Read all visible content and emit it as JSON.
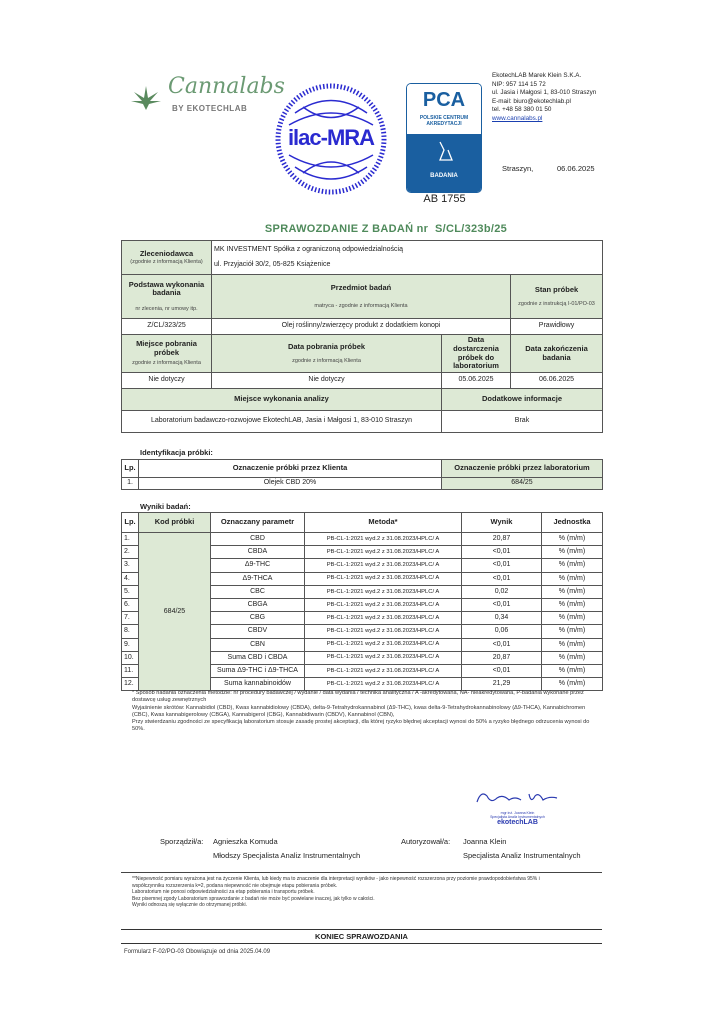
{
  "header": {
    "logo_text": "Cannalabs",
    "logo_sub": "BY EKOTECHLAB",
    "ilac_text": "ilac-MRA",
    "pca": {
      "abbr": "PCA",
      "name1": "POLSKIE CENTRUM",
      "name2": "AKREDYTACJI",
      "label": "BADANIA",
      "number": "AB 1755"
    },
    "company": [
      "EkotechLAB Marek Klein S.K.A.",
      "NIP: 957 114 15 72",
      "ul. Jasia i Małgosi 1, 83-010 Straszyn",
      "E-mail: biuro@ekotechlab.pl",
      "tel. +48 58 380 01 50"
    ],
    "website": "www.cannalabs.pl",
    "place": "Straszyn,",
    "date": "06.06.2025"
  },
  "title": {
    "text": "SPRAWOZDANIE Z BADAŃ nr",
    "number": "S/CL/323b/25"
  },
  "info": {
    "client_label": "Zleceniodawca",
    "client_note": "(zgodnie z informacją Klienta)",
    "client_name": "MK INVESTMENT Spółka z ograniczoną odpowiedzialnością",
    "client_address": "ul. Przyjaciół 30/2, 05-825 Książenice",
    "basis_label": "Podstawa wykonania badania",
    "basis_note": "nr zlecenia, nr umowy itp.",
    "subject_label": "Przedmiot badań",
    "subject_note": "matryca - zgodnie z informacją Klienta",
    "state_label": "Stan próbek",
    "state_note": "zgodnie z instrukcją I-01/PO-03",
    "basis_value": "Z/CL/323/25",
    "subject_value": "Olej roślinny/zwierzęcy produkt z dodatkiem konopi",
    "state_value": "Prawidłowy",
    "place_label": "Miejsce pobrania próbek",
    "place_note": "zgodnie z informacją Klienta",
    "sampling_date_label": "Data pobrania próbek",
    "sampling_date_note": "zgodnie z informacją Klienta",
    "delivery_label": "Data dostarczenia próbek do laboratorium",
    "end_label": "Data zakończenia badania",
    "place_value": "Nie dotyczy",
    "sampling_date_value": "Nie dotyczy",
    "delivery_value": "05.06.2025",
    "end_value": "06.06.2025",
    "analysis_place_label": "Miejsce wykonania analizy",
    "additional_label": "Dodatkowe informacje",
    "analysis_place_value": "Laboratorium badawczo-rozwojowe EkotechLAB, Jasia i Małgosi 1, 83-010 Straszyn",
    "additional_value": "Brak"
  },
  "identification": {
    "title": "Identyfikacja próbki:",
    "headers": [
      "Lp.",
      "Oznaczenie próbki przez Klienta",
      "Oznaczenie próbki przez laboratorium"
    ],
    "row": [
      "1.",
      "Olejek CBD 20%",
      "684/25"
    ]
  },
  "results": {
    "title": "Wyniki badań:",
    "headers": [
      "Lp.",
      "Kod próbki",
      "Oznaczany parametr",
      "Metoda*",
      "Wynik",
      "Jednostka"
    ],
    "sample_code": "684/25",
    "method": "PB-CL-1:2021 wyd.2 z 31.08.2023/HPLC/  A",
    "rows": [
      {
        "lp": "1.",
        "param": "CBD",
        "result": "20,87",
        "unit": "% (m/m)"
      },
      {
        "lp": "2.",
        "param": "CBDA",
        "result": "<0,01",
        "unit": "% (m/m)"
      },
      {
        "lp": "3.",
        "param": "Δ9-THC",
        "result": "<0,01",
        "unit": "% (m/m)"
      },
      {
        "lp": "4.",
        "param": "Δ9-THCA",
        "result": "<0,01",
        "unit": "% (m/m)"
      },
      {
        "lp": "5.",
        "param": "CBC",
        "result": "0,02",
        "unit": "% (m/m)"
      },
      {
        "lp": "6.",
        "param": "CBGA",
        "result": "<0,01",
        "unit": "% (m/m)"
      },
      {
        "lp": "7.",
        "param": "CBG",
        "result": "0,34",
        "unit": "% (m/m)"
      },
      {
        "lp": "8.",
        "param": "CBDV",
        "result": "0,06",
        "unit": "% (m/m)"
      },
      {
        "lp": "9.",
        "param": "CBN",
        "result": "<0,01",
        "unit": "% (m/m)"
      },
      {
        "lp": "10.",
        "param": "Suma CBD i CBDA",
        "result": "20,87",
        "unit": "% (m/m)"
      },
      {
        "lp": "11.",
        "param": "Suma Δ9-THC i Δ9-THCA",
        "result": "<0,01",
        "unit": "% (m/m)"
      },
      {
        "lp": "12.",
        "param": "Suma kannabinoidów",
        "result": "21,29",
        "unit": "% (m/m)"
      }
    ]
  },
  "footnote": [
    "* Sposób nadania oznaczenia metodzie: nr procedury badawczej / wydanie / data wydania / technika analityczna / A -akredytowana, NA- nieakredytowana, P-badania wykonane przez dostawcę usług zewnętrznych",
    "Wyjaśnienie skrótów: Kannabidiol (CBD), Kwas kannabidiolowy (CBDA), delta-9-Tetrahydrokannabinol (Δ9-THC), kwas delta-9-Tetrahydrokannabinolowy (Δ9-THCA), Kannabichromen (CBC), Kwas kannabigerolowy (CBGA), Kannabigerol (CBG), Kannabidiwarin (CBDV), Kannabinol (CBN),",
    "Przy stwierdzaniu zgodności ze specyfikacją laboratorium stosuje zasadę prostej akceptacji, dla której ryzyko błędnej akceptacji wynosi do 50% a ryzyko błędnego odrzucenia wynosi do 50%."
  ],
  "signatures": {
    "prepared_label": "Sporządził/a:",
    "prepared_name": "Agnieszka Komuda",
    "prepared_role": "Młodszy Specjalista Analiz Instrumentalnych",
    "authorized_label": "Autoryzował/a:",
    "authorized_name": "Joanna Klein",
    "authorized_role": "Specjalista Analiz Instrumentalnych",
    "stamp_line": "mgr inż. Joanna Klein",
    "stamp_role": "Specjalista Analiz Instrumentalnych",
    "stamp_logo": "ekotechLAB"
  },
  "disclaimer": [
    "**Niepewność pomiaru wyrażona jest na życzenie Klienta,  lub kiedy ma to znaczenie dla interpretacji wyników - jako niepewność rozszerzona przy poziomie prawdopodobieństwa 95% i współczynniku rozszerzenia k=2, podana niepewność nie obejmuje etapu pobierania próbek.",
    "Laboratorium nie ponosi odpowiedzialności za etap pobierania i transportu próbek.",
    "Bez pisemnej zgody Laboratorium sprawozdanie z badań nie może być powielane inaczej, jak tylko w całości.",
    "Wyniki odnoszą się wyłącznie do otrzymanej próbki."
  ],
  "end_text": "KONIEC SPRAWOZDANIA",
  "form_text": "Formularz F-02/PO-03 Obowiązuje od dnia 2025.04.09",
  "colors": {
    "green_fill": "#dde9d5",
    "title_green": "#4f8a5b",
    "pca_blue": "#1a5fa0",
    "ilac_blue": "#2a2ad0"
  }
}
